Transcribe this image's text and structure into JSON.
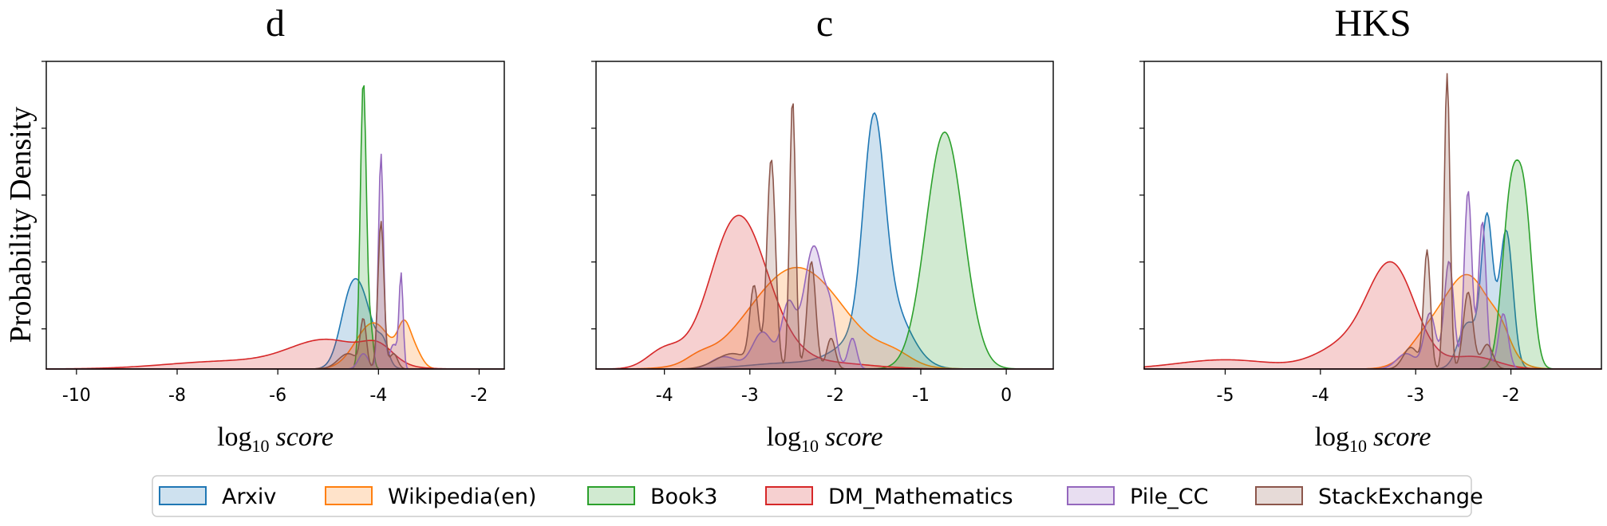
{
  "chart_data": [
    {
      "type": "area",
      "title": "d",
      "ylabel": "Probability Density",
      "xlabel": {
        "base": "log",
        "sub": "10",
        "var": "score"
      },
      "xlim": [
        -10.6,
        -1.5
      ],
      "ylim": [
        0,
        1
      ],
      "xticks": [
        -10,
        -8,
        -6,
        -4,
        -2
      ],
      "series": [
        {
          "name": "Arxiv",
          "peaks": [
            [
              -4.35,
              0.25,
              0.22
            ],
            [
              -4.6,
              0.2,
              0.12
            ],
            [
              -3.9,
              0.1,
              0.06
            ]
          ]
        },
        {
          "name": "Wikipedia(en)",
          "peaks": [
            [
              -4.1,
              0.35,
              0.15
            ],
            [
              -3.5,
              0.12,
              0.1
            ],
            [
              -3.3,
              0.15,
              0.06
            ]
          ]
        },
        {
          "name": "Book3",
          "peaks": [
            [
              -4.3,
              0.06,
              0.94
            ],
            [
              -4.15,
              0.05,
              0.12
            ]
          ]
        },
        {
          "name": "DM_Mathematics",
          "peaks": [
            [
              -5.0,
              0.75,
              0.09
            ],
            [
              -7.0,
              1.2,
              0.025
            ],
            [
              -4.0,
              0.3,
              0.05
            ]
          ]
        },
        {
          "name": "Pile_CC",
          "peaks": [
            [
              -3.95,
              0.05,
              0.7
            ],
            [
              -3.55,
              0.04,
              0.3
            ],
            [
              -4.3,
              0.1,
              0.05
            ],
            [
              -3.7,
              0.08,
              0.08
            ]
          ]
        },
        {
          "name": "StackExchange",
          "peaks": [
            [
              -3.95,
              0.06,
              0.48
            ],
            [
              -4.3,
              0.06,
              0.15
            ],
            [
              -4.6,
              0.2,
              0.05
            ],
            [
              -3.7,
              0.08,
              0.05
            ]
          ]
        }
      ]
    },
    {
      "type": "area",
      "title": "c",
      "ylabel": "",
      "xlabel": {
        "base": "log",
        "sub": "10",
        "var": "score"
      },
      "xlim": [
        -4.8,
        0.55
      ],
      "ylim": [
        0,
        1
      ],
      "xticks": [
        -4,
        -3,
        -2,
        -1,
        0
      ],
      "series": [
        {
          "name": "Arxiv",
          "peaks": [
            [
              -1.55,
              0.12,
              0.62
            ],
            [
              -1.4,
              0.25,
              0.22
            ],
            [
              -1.85,
              0.25,
              0.05
            ],
            [
              -2.5,
              0.5,
              0.02
            ]
          ]
        },
        {
          "name": "Wikipedia(en)",
          "peaks": [
            [
              -2.45,
              0.55,
              0.33
            ],
            [
              -3.6,
              0.15,
              0.02
            ],
            [
              -1.3,
              0.2,
              0.03
            ]
          ]
        },
        {
          "name": "Book3",
          "peaks": [
            [
              -0.72,
              0.22,
              0.77
            ]
          ]
        },
        {
          "name": "DM_Mathematics",
          "peaks": [
            [
              -3.15,
              0.32,
              0.48
            ],
            [
              -4.0,
              0.2,
              0.06
            ],
            [
              -2.7,
              0.3,
              0.05
            ],
            [
              -2.1,
              0.5,
              0.02
            ]
          ]
        },
        {
          "name": "Pile_CC",
          "peaks": [
            [
              -2.25,
              0.12,
              0.4
            ],
            [
              -2.05,
              0.06,
              0.12
            ],
            [
              -2.55,
              0.08,
              0.2
            ],
            [
              -2.85,
              0.12,
              0.12
            ],
            [
              -1.8,
              0.05,
              0.1
            ],
            [
              -3.3,
              0.15,
              0.04
            ]
          ]
        },
        {
          "name": "StackExchange",
          "peaks": [
            [
              -2.5,
              0.035,
              0.88
            ],
            [
              -2.75,
              0.05,
              0.68
            ],
            [
              -2.28,
              0.05,
              0.35
            ],
            [
              -2.95,
              0.05,
              0.25
            ],
            [
              -2.05,
              0.05,
              0.1
            ],
            [
              -3.2,
              0.2,
              0.05
            ]
          ]
        }
      ]
    },
    {
      "type": "area",
      "title": "HKS",
      "ylabel": "",
      "xlabel": {
        "base": "log",
        "sub": "10",
        "var": "score"
      },
      "xlim": [
        -5.85,
        -1.05
      ],
      "ylim": [
        0,
        1
      ],
      "xticks": [
        -5,
        -4,
        -3,
        -2
      ],
      "series": [
        {
          "name": "Arxiv",
          "peaks": [
            [
              -2.25,
              0.06,
              0.48
            ],
            [
              -2.05,
              0.07,
              0.45
            ],
            [
              -2.45,
              0.1,
              0.15
            ]
          ]
        },
        {
          "name": "Wikipedia(en)",
          "peaks": [
            [
              -2.45,
              0.25,
              0.3
            ],
            [
              -2.9,
              0.2,
              0.08
            ],
            [
              -2.1,
              0.1,
              0.05
            ]
          ]
        },
        {
          "name": "Book3",
          "peaks": [
            [
              -2.0,
              0.09,
              0.55
            ],
            [
              -1.85,
              0.08,
              0.45
            ]
          ]
        },
        {
          "name": "DM_Mathematics",
          "peaks": [
            [
              -3.25,
              0.25,
              0.33
            ],
            [
              -3.75,
              0.3,
              0.07
            ],
            [
              -5.0,
              0.5,
              0.03
            ],
            [
              -2.4,
              0.25,
              0.04
            ]
          ]
        },
        {
          "name": "Pile_CC",
          "peaks": [
            [
              -2.45,
              0.04,
              0.58
            ],
            [
              -2.3,
              0.04,
              0.48
            ],
            [
              -2.65,
              0.05,
              0.35
            ],
            [
              -2.85,
              0.06,
              0.18
            ],
            [
              -2.08,
              0.05,
              0.18
            ],
            [
              -3.1,
              0.1,
              0.05
            ]
          ]
        },
        {
          "name": "StackExchange",
          "peaks": [
            [
              -2.67,
              0.03,
              0.96
            ],
            [
              -2.88,
              0.035,
              0.38
            ],
            [
              -2.45,
              0.05,
              0.25
            ],
            [
              -3.05,
              0.08,
              0.07
            ],
            [
              -2.25,
              0.06,
              0.08
            ]
          ]
        }
      ]
    }
  ],
  "legend": {
    "placement": "bottom-center",
    "items": [
      {
        "label": "Arxiv",
        "color": "#1f77b4"
      },
      {
        "label": "Wikipedia(en)",
        "color": "#ff7f0e"
      },
      {
        "label": "Book3",
        "color": "#2ca02c"
      },
      {
        "label": "DM_Mathematics",
        "color": "#d62728"
      },
      {
        "label": "Pile_CC",
        "color": "#9467bd"
      },
      {
        "label": "StackExchange",
        "color": "#8c564b"
      }
    ]
  }
}
